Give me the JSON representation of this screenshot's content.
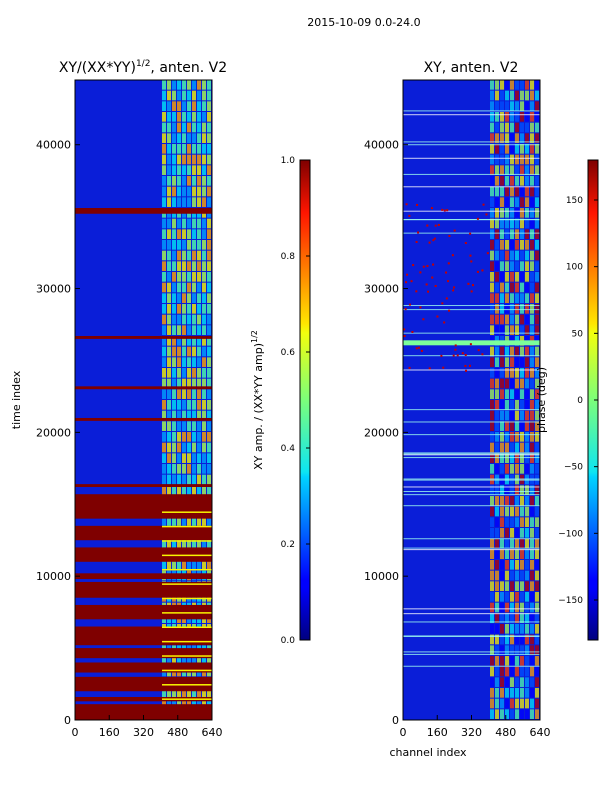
{
  "figure_title": "2015-10-09 0.0-24.0",
  "chart_data": [
    {
      "type": "heatmap",
      "title": "XY/(XX*YY)",
      "title_superscript": "1/2",
      "title_suffix": ", anten. V2",
      "xlabel": "",
      "ylabel": "time index",
      "xlim": [
        0,
        640
      ],
      "ylim": [
        0,
        44500
      ],
      "xticks": [
        "0",
        "160",
        "320",
        "480",
        "640"
      ],
      "yticks": [
        "0",
        "10000",
        "20000",
        "30000",
        "40000"
      ],
      "colorbar": {
        "label": "XY amp. / (XX*YY amp)",
        "label_superscript": "1/2",
        "range": [
          0.0,
          1.0
        ],
        "ticks": [
          "0.0",
          "0.2",
          "0.4",
          "0.6",
          "0.8",
          "1.0"
        ]
      }
    },
    {
      "type": "heatmap",
      "title": "XY, anten. V2",
      "xlabel": "channel index",
      "ylabel": "",
      "xlim": [
        0,
        640
      ],
      "ylim": [
        0,
        44500
      ],
      "xticks": [
        "0",
        "160",
        "320",
        "480",
        "640"
      ],
      "yticks": [
        "0",
        "10000",
        "20000",
        "30000",
        "40000"
      ],
      "colorbar": {
        "label": "phase (deg)",
        "range": [
          -180,
          180
        ],
        "ticks": [
          "150",
          "100",
          "50",
          "0",
          "−50",
          "−100",
          "−150"
        ]
      }
    }
  ],
  "colors": {
    "background": "#ffffff",
    "axis": "#000000"
  }
}
